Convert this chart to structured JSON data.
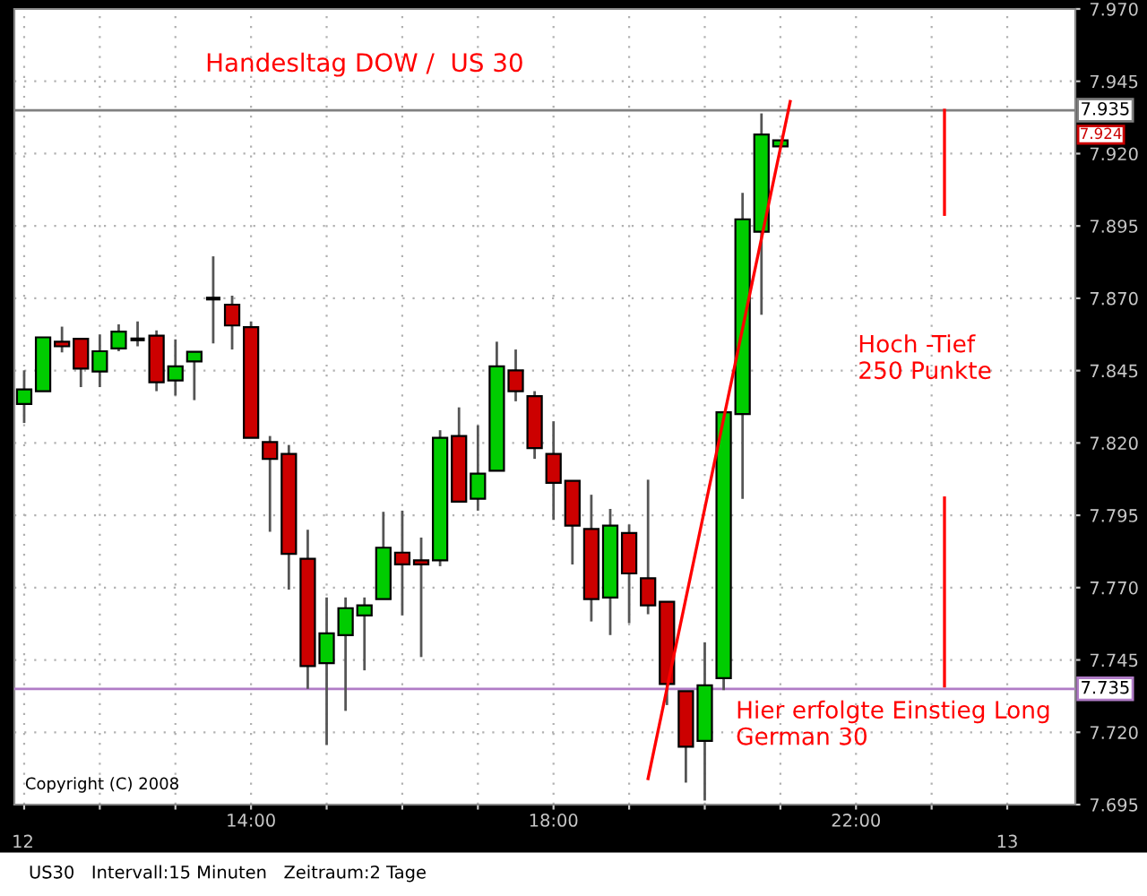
{
  "chart_data": {
    "type": "candlestick",
    "title": "Handesltag DOW /  US 30",
    "x": [
      11,
      11.25,
      11.5,
      11.75,
      12,
      12.25,
      12.5,
      12.75,
      13,
      13.25,
      13.5,
      13.75,
      14,
      14.25,
      14.5,
      14.75,
      15,
      15.25,
      15.5,
      15.75,
      16,
      16.25,
      16.5,
      16.75,
      17,
      17.25,
      17.5,
      17.75,
      18,
      18.25,
      18.5,
      18.75,
      19,
      19.25,
      19.5,
      19.75,
      20,
      20.25,
      20.5,
      20.75,
      21
    ],
    "ohlc": [
      [
        7833.5,
        7845.1,
        7826.9,
        7838.5
      ],
      [
        7837.9,
        7856.5,
        7837.9,
        7856.5
      ],
      [
        7855.0,
        7860.2,
        7851.3,
        7853.4
      ],
      [
        7856.0,
        7856.0,
        7839.3,
        7845.7
      ],
      [
        7844.7,
        7857.5,
        7839.3,
        7851.7
      ],
      [
        7852.7,
        7861.0,
        7851.7,
        7858.5
      ],
      [
        7855.8,
        7862.0,
        7853.4,
        7855.8
      ],
      [
        7857.1,
        7858.9,
        7837.9,
        7841.0
      ],
      [
        7841.6,
        7855.8,
        7836.4,
        7846.5
      ],
      [
        7848.2,
        7851.5,
        7834.8,
        7851.5
      ],
      [
        7869.9,
        7884.5,
        7854.4,
        7869.9
      ],
      [
        7867.8,
        7870.9,
        7852.3,
        7860.6
      ],
      [
        7860.0,
        7862.0,
        7821.8,
        7821.8
      ],
      [
        7820.3,
        7822.4,
        7789.3,
        7814.5
      ],
      [
        7816.2,
        7819.3,
        7769.3,
        7781.7
      ],
      [
        7780.0,
        7790.0,
        7735.0,
        7742.9
      ],
      [
        7743.9,
        7766.6,
        7715.6,
        7754.2
      ],
      [
        7753.6,
        7766.6,
        7727.4,
        7762.9
      ],
      [
        7760.4,
        7766.6,
        7741.4,
        7763.9
      ],
      [
        7766.0,
        7796.2,
        7766.0,
        7783.8
      ],
      [
        7782.1,
        7796.6,
        7760.4,
        7778.0
      ],
      [
        7779.4,
        7787.3,
        7746.0,
        7778.0
      ],
      [
        7779.4,
        7824.4,
        7777.4,
        7821.8
      ],
      [
        7822.4,
        7832.3,
        7799.7,
        7799.7
      ],
      [
        7800.7,
        7826.1,
        7796.6,
        7809.4
      ],
      [
        7810.4,
        7855.0,
        7810.4,
        7846.5
      ],
      [
        7845.1,
        7852.3,
        7834.4,
        7837.9
      ],
      [
        7836.2,
        7837.9,
        7814.5,
        7818.2
      ],
      [
        7816.2,
        7827.5,
        7793.4,
        7806.2
      ],
      [
        7806.9,
        7806.9,
        7778.0,
        7791.4
      ],
      [
        7790.3,
        7802.1,
        7758.3,
        7766.0
      ],
      [
        7766.6,
        7797.2,
        7753.6,
        7791.4
      ],
      [
        7788.9,
        7791.8,
        7757.7,
        7774.9
      ],
      [
        7773.2,
        7807.3,
        7760.8,
        7763.9
      ],
      [
        7765.1,
        7765.1,
        7729.4,
        7736.7
      ],
      [
        7734.2,
        7734.2,
        7702.6,
        7715.0
      ],
      [
        7717.0,
        7751.1,
        7696.4,
        7736.2
      ],
      [
        7738.7,
        7830.6,
        7734.6,
        7830.6
      ],
      [
        7830.0,
        7906.4,
        7800.7,
        7897.3
      ],
      [
        7893.0,
        7933.9,
        7864.3,
        7926.6
      ],
      [
        7922.5,
        7924.6,
        7922.5,
        7924.6
      ]
    ],
    "colors": [
      "#00cc00",
      "#00cc00",
      "#cc0000",
      "#cc0000",
      "#00cc00",
      "#00cc00",
      "#000000",
      "#cc0000",
      "#00cc00",
      "#00cc00",
      "#000000",
      "#cc0000",
      "#cc0000",
      "#cc0000",
      "#cc0000",
      "#cc0000",
      "#00cc00",
      "#00cc00",
      "#00cc00",
      "#00cc00",
      "#cc0000",
      "#cc0000",
      "#00cc00",
      "#cc0000",
      "#00cc00",
      "#00cc00",
      "#cc0000",
      "#cc0000",
      "#cc0000",
      "#cc0000",
      "#cc0000",
      "#00cc00",
      "#cc0000",
      "#cc0000",
      "#cc0000",
      "#cc0000",
      "#00cc00",
      "#00cc00",
      "#00cc00",
      "#00cc00",
      "#00cc00"
    ],
    "series": [
      {
        "type": "line",
        "color": "#ff0000",
        "x": [
          19.25,
          21.13
        ],
        "values": [
          7704,
          7938
        ]
      },
      {
        "type": "line",
        "color": "#ff0000",
        "x": [
          23.17,
          23.17
        ],
        "values": [
          7935,
          7899
        ]
      },
      {
        "type": "line",
        "color": "#ff0000",
        "x": [
          23.17,
          23.17
        ],
        "values": [
          7801,
          7736
        ]
      }
    ],
    "ref_lines": [
      {
        "axis": "y",
        "value": 7935,
        "label": "7.935",
        "color": "#808080"
      },
      {
        "axis": "y",
        "value": 7735,
        "label": "7.735",
        "color": "#b07cc6"
      }
    ],
    "annotations": [
      "7.924",
      "Hoch -Tief\n250 Punkte",
      "Hier erfolgte Einstieg Long\nGerman 30",
      "Copyright (C) 2008",
      "US30   Intervall:15 Minuten   Zeitraum:2 Tage",
      "12",
      "13"
    ],
    "xlim": [
      10.87,
      24.9
    ],
    "xticks": [
      {
        "value": 11,
        "label": null
      },
      {
        "value": 12,
        "label": null
      },
      {
        "value": 13,
        "label": null
      },
      {
        "value": 14,
        "label": "14:00"
      },
      {
        "value": 15,
        "label": null
      },
      {
        "value": 16,
        "label": null
      },
      {
        "value": 17,
        "label": null
      },
      {
        "value": 18,
        "label": "18:00"
      },
      {
        "value": 19,
        "label": null
      },
      {
        "value": 20,
        "label": null
      },
      {
        "value": 21,
        "label": null
      },
      {
        "value": 22,
        "label": "22:00"
      },
      {
        "value": 23,
        "label": null
      },
      {
        "value": 24,
        "label": null
      }
    ],
    "ylim": [
      7695,
      7970
    ],
    "yticks": [
      {
        "value": 7695,
        "label": "7.695"
      },
      {
        "value": 7720,
        "label": "7.720"
      },
      {
        "value": 7745,
        "label": "7.745"
      },
      {
        "value": 7770,
        "label": "7.770"
      },
      {
        "value": 7795,
        "label": "7.795"
      },
      {
        "value": 7820,
        "label": "7.820"
      },
      {
        "value": 7845,
        "label": "7.845"
      },
      {
        "value": 7870,
        "label": "7.870"
      },
      {
        "value": 7895,
        "label": "7.895"
      },
      {
        "value": 7920,
        "label": "7.920"
      },
      {
        "value": 7945,
        "label": "7.945"
      },
      {
        "value": 7970,
        "label": "7.970"
      }
    ],
    "grid": true
  }
}
